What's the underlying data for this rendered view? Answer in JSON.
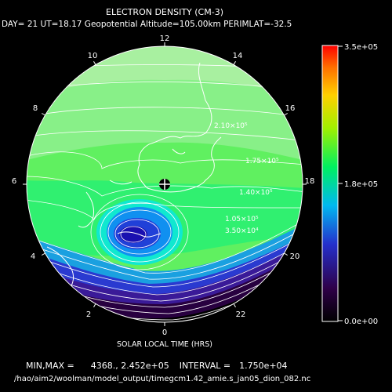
{
  "title": "ELECTRON DENSITY (CM-3)",
  "subtitle": "DAY= 21 UT=18.17 Geopotential Altitude=105.00km PERIMLAT=-32.5",
  "hour_labels": [
    "12",
    "14",
    "16",
    "18",
    "20",
    "22",
    "0",
    "2",
    "4",
    "6",
    "8",
    "10"
  ],
  "contour_labels": [
    "2.10×10⁵",
    "1.75×10⁵",
    "1.40×10⁵",
    "1.05×10⁵",
    "3.50×10⁴"
  ],
  "colorbar": {
    "max_label": "3.5e+05",
    "mid_label": "1.8e+05",
    "min_label": "0.0e+00",
    "min": 0,
    "max": 350000
  },
  "axis_label": "SOLAR LOCAL TIME (HRS)",
  "stats": {
    "minmax_label": "MIN,MAX =",
    "minmax_values": "4368., 2.452e+05",
    "interval_label": "INTERVAL =",
    "interval_value": "1.750e+04"
  },
  "file_path": "/hao/aim2/woolman/model_output/timegcm1.42_amie.s_jan05_dion_082.nc"
}
